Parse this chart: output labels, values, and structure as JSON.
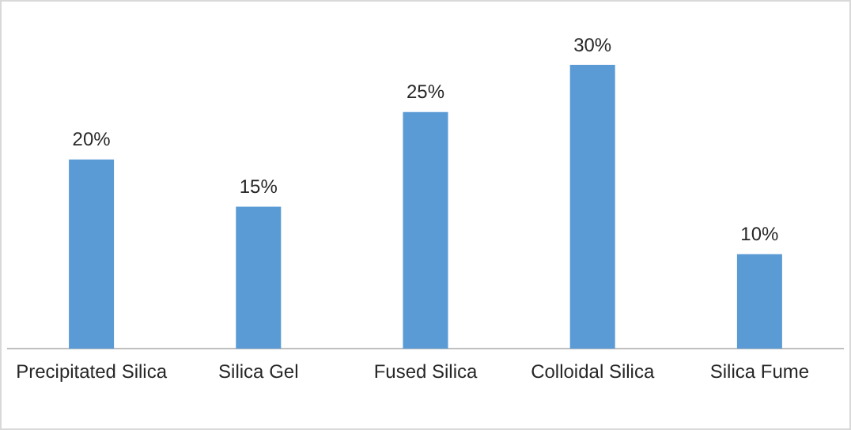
{
  "chart_data": {
    "type": "bar",
    "categories": [
      "Precipitated Silica",
      "Silica Gel",
      "Fused Silica",
      "Colloidal Silica",
      "Silica Fume"
    ],
    "values": [
      20,
      15,
      25,
      30,
      10
    ],
    "value_labels": [
      "20%",
      "15%",
      "25%",
      "30%",
      "10%"
    ],
    "color": "#5b9bd5",
    "grid": false,
    "legend": false
  }
}
